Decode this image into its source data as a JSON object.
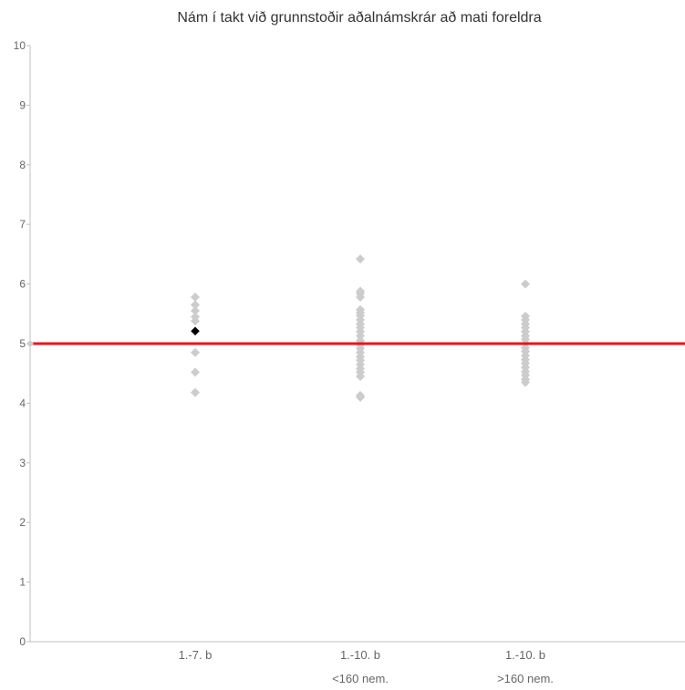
{
  "chart_data": {
    "type": "scatter",
    "title": "Nám í takt við grunnstoðir aðalnámskrár að mati foreldra",
    "xlabel": "",
    "ylabel": "",
    "ylim": [
      0,
      10
    ],
    "y_ticks": [
      "0",
      "1",
      "2",
      "3",
      "4",
      "5",
      "6",
      "7",
      "8",
      "9",
      "10"
    ],
    "categories": [
      {
        "line1": "1.-7. b",
        "line2": ""
      },
      {
        "line1": "1.-10. b",
        "line2": "<160 nem."
      },
      {
        "line1": "1.-10. b",
        "line2": ">160 nem."
      }
    ],
    "grid": false,
    "reference_line": {
      "value": 5.0,
      "color": "#e8141c"
    },
    "colors": {
      "points": "#cccccc",
      "highlight": "#000000",
      "axis": "#c0c0c0",
      "reference": "#e8141c"
    },
    "series": [
      {
        "values": [
          [
            5.78,
            5.65,
            5.55,
            5.45,
            5.38,
            4.85,
            4.52,
            4.18
          ],
          [
            6.42,
            5.88,
            5.84,
            5.78,
            5.57,
            5.52,
            5.47,
            5.4,
            5.33,
            5.27,
            5.2,
            5.13,
            5.05,
            4.98,
            4.92,
            4.85,
            4.78,
            4.72,
            4.65,
            4.58,
            4.52,
            4.45,
            4.13,
            4.1
          ],
          [
            6.0,
            5.46,
            5.4,
            5.33,
            5.27,
            5.2,
            5.13,
            5.07,
            5.0,
            4.93,
            4.87,
            4.8,
            4.73,
            4.67,
            4.6,
            4.53,
            4.47,
            4.4,
            4.35
          ]
        ]
      },
      {
        "highlight": true,
        "values": [
          [
            5.21
          ],
          [],
          []
        ]
      }
    ]
  }
}
